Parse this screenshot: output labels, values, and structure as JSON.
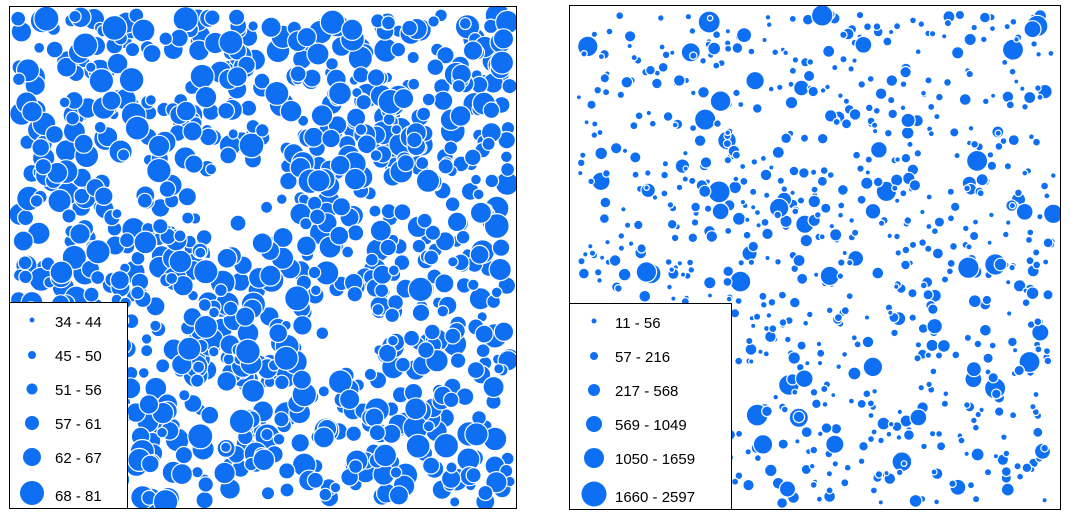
{
  "panels": [
    {
      "id": "left",
      "symbol_color": "#0f6ff2",
      "legend": {
        "classes": [
          {
            "label": "34 - 44"
          },
          {
            "label": "45 - 50"
          },
          {
            "label": "51 - 56"
          },
          {
            "label": "57 - 61"
          },
          {
            "label": "62 - 67"
          },
          {
            "label": "68 - 81"
          }
        ]
      }
    },
    {
      "id": "right",
      "symbol_color": "#0f6ff2",
      "legend": {
        "classes": [
          {
            "label": "11 - 56"
          },
          {
            "label": "57 - 216"
          },
          {
            "label": "217 - 568"
          },
          {
            "label": "569 - 1049"
          },
          {
            "label": "1050 - 1659"
          },
          {
            "label": "1660 - 2597"
          }
        ]
      }
    }
  ]
}
